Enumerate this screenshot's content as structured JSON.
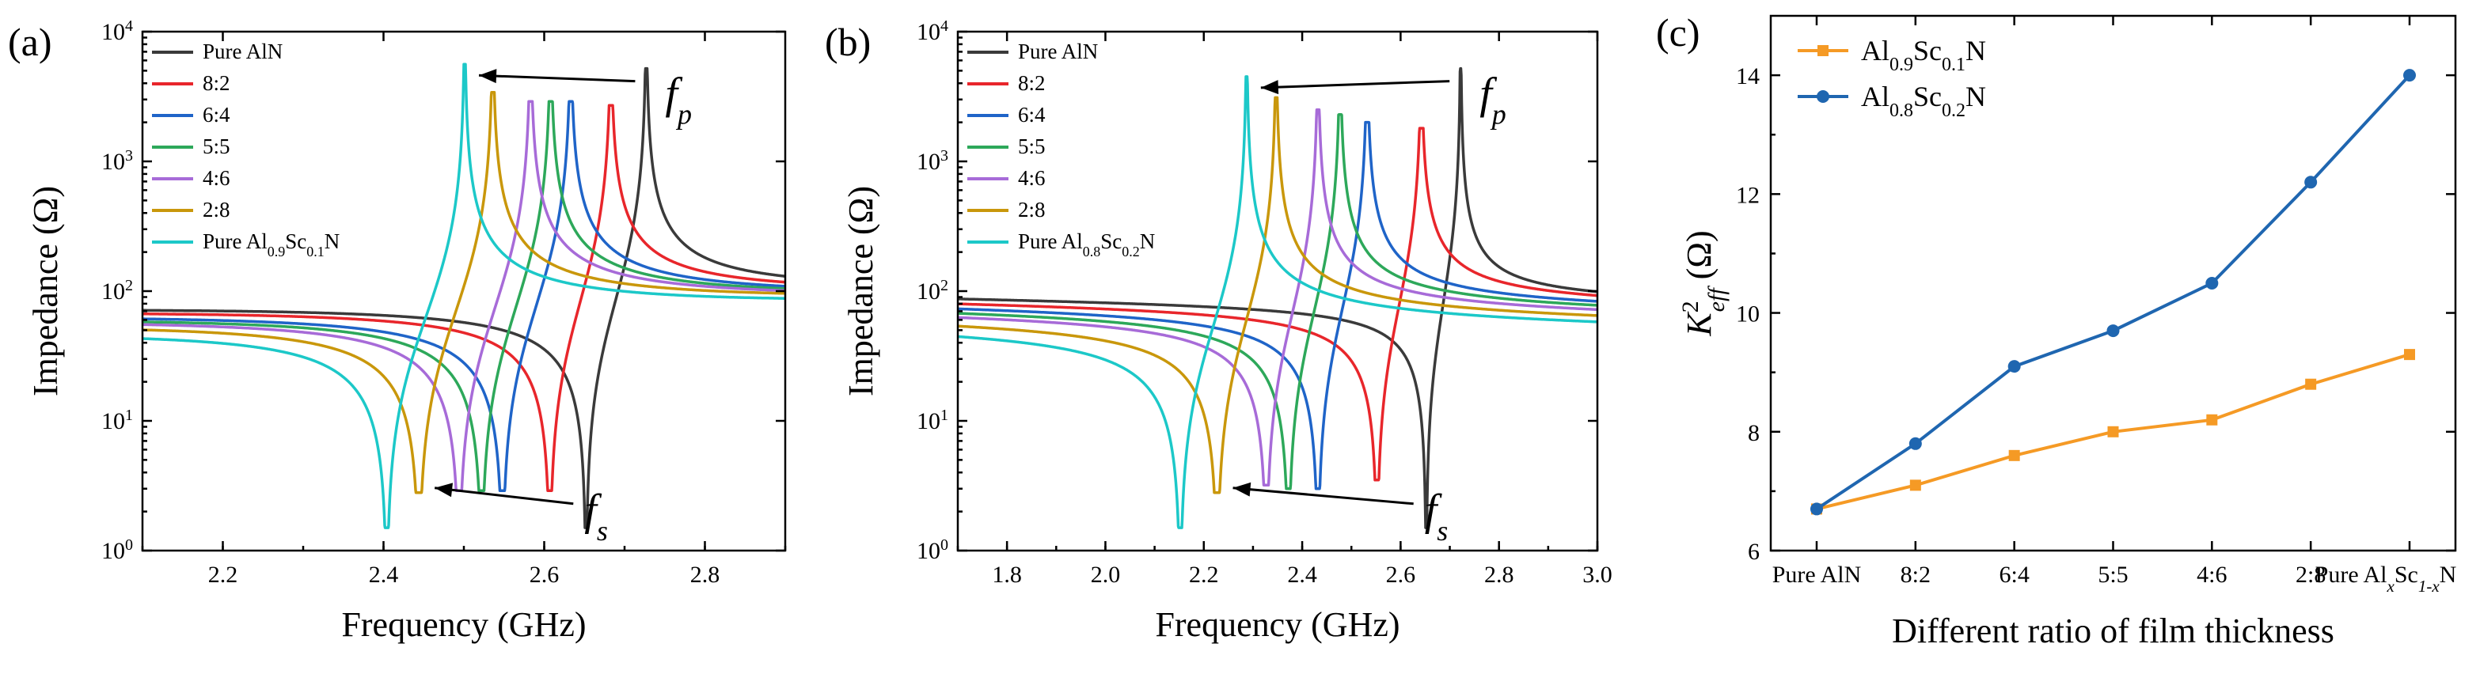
{
  "colors": {
    "Pure AlN": "#3a3a3a",
    "8:2": "#e8262b",
    "6:4": "#1f64c8",
    "5:5": "#2da85a",
    "4:6": "#a76bd8",
    "2:8": "#c9970b",
    "pure_ScAlN": "#1cc8c8",
    "c_orange": "#f59a25",
    "c_blue": "#1f66b0"
  },
  "chart_data": [
    {
      "type": "line",
      "panel_label": "(a)",
      "xlabel": "Frequency (GHz)",
      "ylabel": "Impedance (Ω)",
      "xlim": [
        2.1,
        2.9
      ],
      "ylim": [
        1,
        10000
      ],
      "yscale": "log",
      "x_ticks": [
        "2.2",
        "2.4",
        "2.6",
        "2.8"
      ],
      "y_tick_bases": [
        "10",
        "10",
        "10",
        "10",
        "10"
      ],
      "y_tick_exponents": [
        "0",
        "1",
        "2",
        "3",
        "4"
      ],
      "annotations": {
        "fp_base": "f",
        "fp_sub": "p",
        "fs_base": "f",
        "fs_sub": "s"
      },
      "legend": [
        "Pure AlN",
        "8:2",
        "6:4",
        "5:5",
        "4:6",
        "2:8",
        "Pure Al0.9Sc0.1N"
      ],
      "legend_last": {
        "prefix": "Pure Al",
        "sub1": "0.9",
        "mid": "Sc",
        "sub2": "0.1",
        "suffix": "N"
      },
      "series": [
        {
          "name": "Pure AlN",
          "fs": 2.652,
          "fp": 2.727,
          "zmin": 1.5,
          "zmax": 5200,
          "zlow": 82,
          "zhigh": 92
        },
        {
          "name": "8:2",
          "fs": 2.607,
          "fp": 2.683,
          "zmin": 2.9,
          "zmax": 2700,
          "zlow": 78,
          "zhigh": 88
        },
        {
          "name": "6:4",
          "fs": 2.548,
          "fp": 2.633,
          "zmin": 2.9,
          "zmax": 2900,
          "zlow": 74,
          "zhigh": 84
        },
        {
          "name": "5:5",
          "fs": 2.522,
          "fp": 2.608,
          "zmin": 2.9,
          "zmax": 2900,
          "zlow": 71,
          "zhigh": 82
        },
        {
          "name": "4:6",
          "fs": 2.494,
          "fp": 2.583,
          "zmin": 2.9,
          "zmax": 2900,
          "zlow": 69,
          "zhigh": 80
        },
        {
          "name": "2:8",
          "fs": 2.444,
          "fp": 2.536,
          "zmin": 2.8,
          "zmax": 3400,
          "zlow": 65,
          "zhigh": 78
        },
        {
          "name": "Pure Al0.9Sc0.1N",
          "fs": 2.404,
          "fp": 2.501,
          "zmin": 1.5,
          "zmax": 5600,
          "zlow": 58,
          "zhigh": 72
        }
      ]
    },
    {
      "type": "line",
      "panel_label": "(b)",
      "xlabel": "Frequency (GHz)",
      "ylabel": "Impedance (Ω)",
      "xlim": [
        1.7,
        3.0
      ],
      "ylim": [
        1,
        10000
      ],
      "yscale": "log",
      "x_ticks": [
        "1.8",
        "2.0",
        "2.2",
        "2.4",
        "2.6",
        "2.8",
        "3.0"
      ],
      "y_tick_bases": [
        "10",
        "10",
        "10",
        "10",
        "10"
      ],
      "y_tick_exponents": [
        "0",
        "1",
        "2",
        "3",
        "4"
      ],
      "annotations": {
        "fp_base": "f",
        "fp_sub": "p",
        "fs_base": "f",
        "fs_sub": "s"
      },
      "legend": [
        "Pure AlN",
        "8:2",
        "6:4",
        "5:5",
        "4:6",
        "2:8",
        "Pure Al0.8Sc0.2N"
      ],
      "legend_last": {
        "prefix": "Pure Al",
        "sub1": "0.8",
        "mid": "Sc",
        "sub2": "0.2",
        "suffix": "N"
      },
      "series": [
        {
          "name": "Pure AlN",
          "fs": 2.652,
          "fp": 2.722,
          "zmin": 1.5,
          "zmax": 5200,
          "zlow": 95,
          "zhigh": 80
        },
        {
          "name": "8:2",
          "fs": 2.552,
          "fp": 2.642,
          "zmin": 3.5,
          "zmax": 1800,
          "zlow": 90,
          "zhigh": 75
        },
        {
          "name": "6:4",
          "fs": 2.432,
          "fp": 2.532,
          "zmin": 3.0,
          "zmax": 2000,
          "zlow": 85,
          "zhigh": 70
        },
        {
          "name": "5:5",
          "fs": 2.372,
          "fp": 2.477,
          "zmin": 3.0,
          "zmax": 2300,
          "zlow": 80,
          "zhigh": 66
        },
        {
          "name": "4:6",
          "fs": 2.327,
          "fp": 2.432,
          "zmin": 3.2,
          "zmax": 2500,
          "zlow": 75,
          "zhigh": 62
        },
        {
          "name": "2:8",
          "fs": 2.227,
          "fp": 2.347,
          "zmin": 2.8,
          "zmax": 3100,
          "zlow": 68,
          "zhigh": 56
        },
        {
          "name": "Pure Al0.8Sc0.2N",
          "fs": 2.152,
          "fp": 2.287,
          "zmin": 1.5,
          "zmax": 4500,
          "zlow": 60,
          "zhigh": 50
        }
      ]
    },
    {
      "type": "line",
      "panel_label": "(c)",
      "xlabel": "Different ratio of film thickness",
      "ylabel_base": "K",
      "ylabel_sup": "2",
      "ylabel_sub": "eff",
      "ylabel_unit": "(Ω)",
      "ylim": [
        6,
        15
      ],
      "y_ticks": [
        "6",
        "8",
        "10",
        "12",
        "14"
      ],
      "categories": [
        "Pure AlN",
        "8:2",
        "6:4",
        "5:5",
        "4:6",
        "2:8",
        "Pure AlxSc1-xN"
      ],
      "last_category": {
        "prefix": "Pure Al",
        "sub1": "x",
        "mid": "Sc",
        "sub2": "1-x",
        "suffix": "N"
      },
      "legend_labels": [
        {
          "prefix": "Al",
          "sub1": "0.9",
          "mid": "Sc",
          "sub2": "0.1",
          "suffix": "N"
        },
        {
          "prefix": "Al",
          "sub1": "0.8",
          "mid": "Sc",
          "sub2": "0.2",
          "suffix": "N"
        }
      ],
      "series": [
        {
          "name": "Al0.9Sc0.1N",
          "marker": "square",
          "values": [
            6.7,
            7.1,
            7.6,
            8.0,
            8.2,
            8.8,
            9.3
          ]
        },
        {
          "name": "Al0.8Sc0.2N",
          "marker": "circle",
          "values": [
            6.7,
            7.8,
            9.1,
            9.7,
            10.5,
            12.2,
            14.0
          ]
        }
      ]
    }
  ]
}
